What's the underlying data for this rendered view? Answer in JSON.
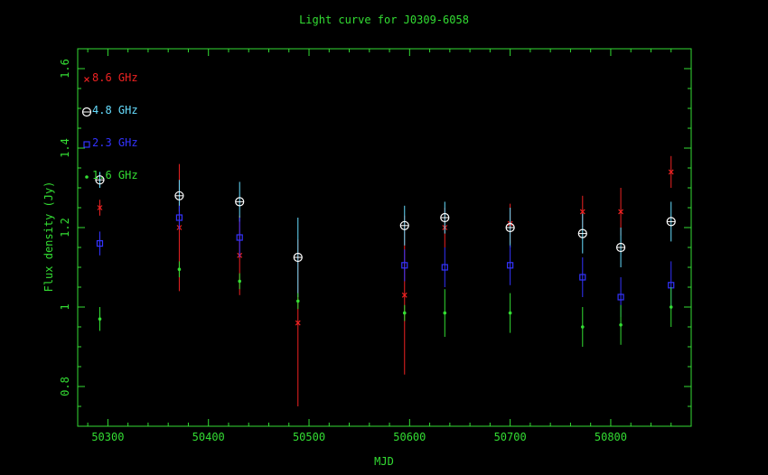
{
  "chart_data": {
    "type": "scatter",
    "title": "Light curve for J0309-6058",
    "xlabel": "MJD",
    "ylabel": "Flux density (Jy)",
    "xlim": [
      50270,
      50880
    ],
    "ylim": [
      0.7,
      1.65
    ],
    "x_ticks": [
      50300,
      50400,
      50500,
      50600,
      50700,
      50800
    ],
    "y_ticks": [
      0.8,
      1,
      1.2,
      1.4,
      1.6
    ],
    "legend_position": "top-left",
    "grid": false,
    "colors": {
      "background": "#000000",
      "axes": "#33dd33",
      "text": "#33dd33"
    },
    "series": [
      {
        "name": "8.6 GHz",
        "marker": "cross",
        "color": "#ee2222",
        "points": [
          {
            "x": 50292,
            "y": 1.25,
            "err": 0.02
          },
          {
            "x": 50371,
            "y": 1.2,
            "err": 0.16
          },
          {
            "x": 50431,
            "y": 1.13,
            "err": 0.1
          },
          {
            "x": 50489,
            "y": 0.96,
            "err": 0.21
          },
          {
            "x": 50595,
            "y": 1.03,
            "err": 0.2
          },
          {
            "x": 50635,
            "y": 1.2,
            "err": 0.05
          },
          {
            "x": 50700,
            "y": 1.21,
            "err": 0.05
          },
          {
            "x": 50772,
            "y": 1.24,
            "err": 0.04
          },
          {
            "x": 50810,
            "y": 1.24,
            "err": 0.06
          },
          {
            "x": 50860,
            "y": 1.34,
            "err": 0.04
          }
        ]
      },
      {
        "name": "4.8 GHz",
        "marker": "circle-plus",
        "color": "#66ddff",
        "points": [
          {
            "x": 50292,
            "y": 1.32,
            "err": 0.02
          },
          {
            "x": 50371,
            "y": 1.28,
            "err": 0.04
          },
          {
            "x": 50431,
            "y": 1.265,
            "err": 0.05
          },
          {
            "x": 50489,
            "y": 1.125,
            "err": 0.1
          },
          {
            "x": 50595,
            "y": 1.205,
            "err": 0.05
          },
          {
            "x": 50635,
            "y": 1.225,
            "err": 0.04
          },
          {
            "x": 50700,
            "y": 1.2,
            "err": 0.05
          },
          {
            "x": 50772,
            "y": 1.185,
            "err": 0.05
          },
          {
            "x": 50810,
            "y": 1.15,
            "err": 0.05
          },
          {
            "x": 50860,
            "y": 1.215,
            "err": 0.05
          }
        ]
      },
      {
        "name": "2.3 GHz",
        "marker": "square",
        "color": "#3333ff",
        "points": [
          {
            "x": 50292,
            "y": 1.16,
            "err": 0.03
          },
          {
            "x": 50371,
            "y": 1.225,
            "err": 0.03
          },
          {
            "x": 50431,
            "y": 1.175,
            "err": 0.05
          },
          {
            "x": 50595,
            "y": 1.105,
            "err": 0.04
          },
          {
            "x": 50635,
            "y": 1.1,
            "err": 0.05
          },
          {
            "x": 50700,
            "y": 1.105,
            "err": 0.05
          },
          {
            "x": 50772,
            "y": 1.075,
            "err": 0.05
          },
          {
            "x": 50810,
            "y": 1.025,
            "err": 0.05
          },
          {
            "x": 50860,
            "y": 1.055,
            "err": 0.06
          }
        ]
      },
      {
        "name": "1.6 GHz",
        "marker": "dot",
        "color": "#33dd33",
        "points": [
          {
            "x": 50292,
            "y": 0.97,
            "err": 0.03
          },
          {
            "x": 50371,
            "y": 1.095,
            "err": 0.02
          },
          {
            "x": 50431,
            "y": 1.065,
            "err": 0.02
          },
          {
            "x": 50489,
            "y": 1.015,
            "err": 0.02
          },
          {
            "x": 50595,
            "y": 0.985,
            "err": 0.02
          },
          {
            "x": 50635,
            "y": 0.985,
            "err": 0.06
          },
          {
            "x": 50700,
            "y": 0.985,
            "err": 0.05
          },
          {
            "x": 50772,
            "y": 0.95,
            "err": 0.05
          },
          {
            "x": 50810,
            "y": 0.955,
            "err": 0.05
          },
          {
            "x": 50860,
            "y": 1.0,
            "err": 0.05
          }
        ]
      }
    ]
  }
}
